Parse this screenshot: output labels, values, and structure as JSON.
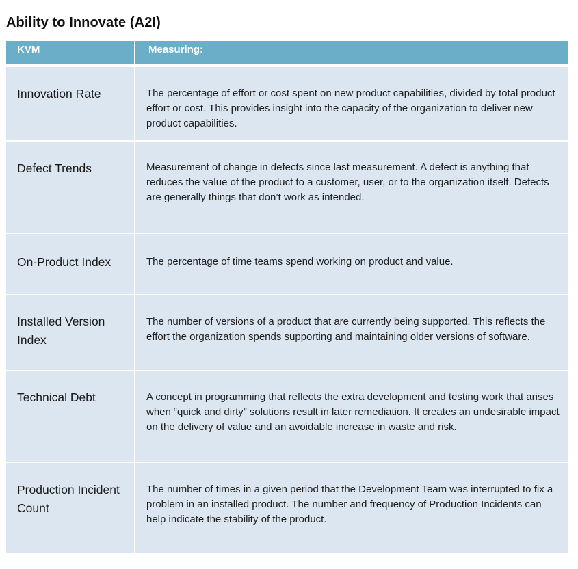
{
  "title": "Ability to Innovate (A2I)",
  "table": {
    "header_bg": "#6aaec8",
    "row_bg": "#dce6f1",
    "headers": [
      "KVM",
      "Measuring:"
    ],
    "rows": [
      {
        "kvm": "Innovation Rate",
        "description": "The percentage of effort or cost spent on new product capabilities, divided by total product effort or cost. This provides insight into the capacity of the organization to deliver new product capabilities."
      },
      {
        "kvm": "Defect Trends",
        "description": "Measurement of change in defects since last measurement. A defect is anything that reduces the value of the product to a customer, user, or to the organization itself. Defects are generally things that don’t work as intended."
      },
      {
        "kvm": "On-Product Index",
        "description": "The percentage of time teams spend working on product and value."
      },
      {
        "kvm": "Installed Version Index",
        "description": "The number of versions of a product that are currently being supported. This reflects the effort the organization spends supporting and maintaining older versions of software."
      },
      {
        "kvm": "Technical Debt",
        "description": "A concept in programming that reflects the extra development and testing work that arises when “quick and dirty” solutions result in later remediation. It creates an undesirable impact on the delivery of value and an avoidable increase in waste and risk."
      },
      {
        "kvm": "Production Incident Count",
        "description": "The number of times in a given period that the Development Team was interrupted to fix a problem in an installed product. The number and frequency of Production Incidents can help indicate the stability of the product."
      }
    ]
  }
}
